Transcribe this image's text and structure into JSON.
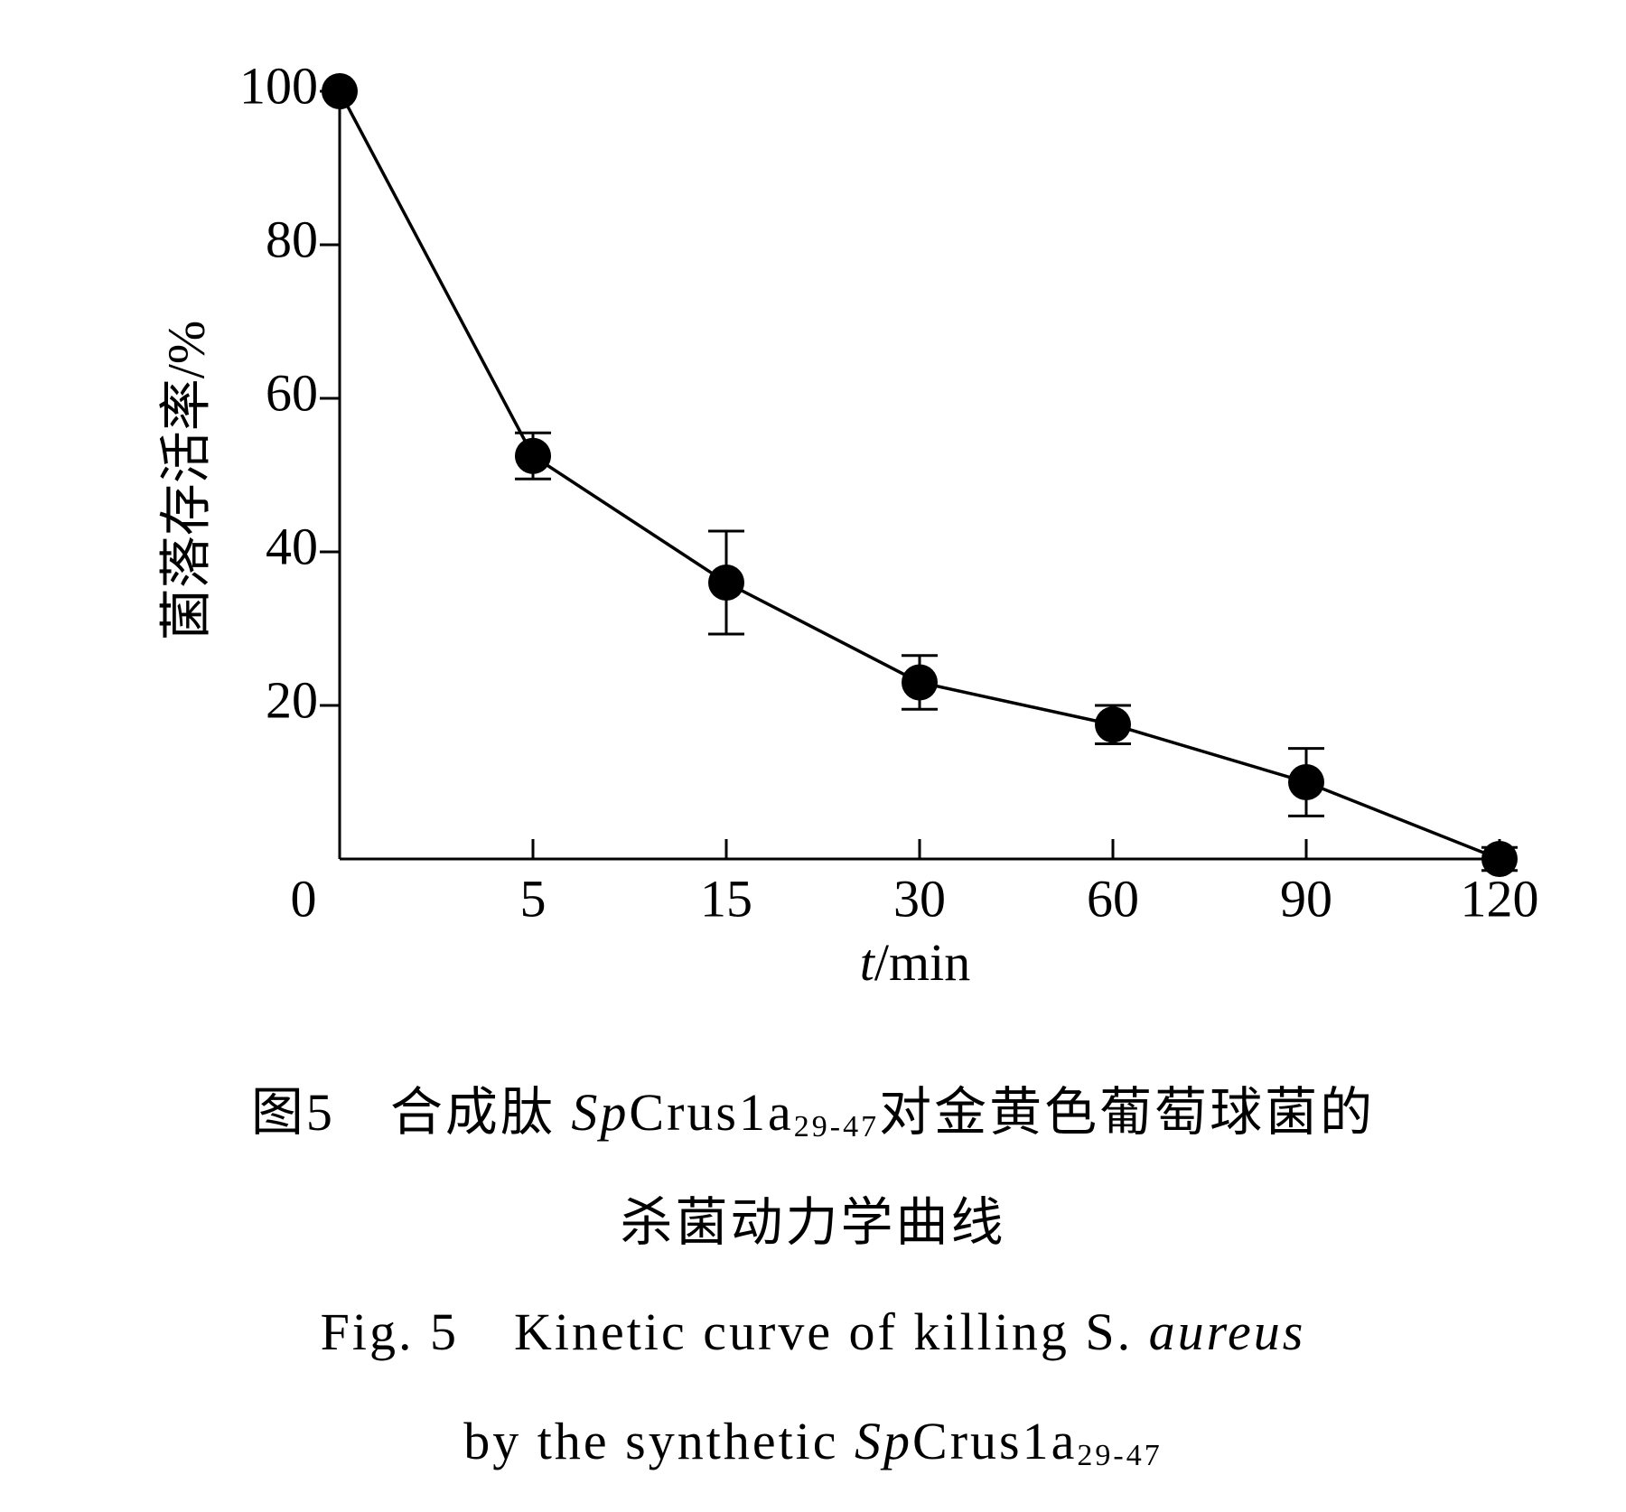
{
  "chart_data": {
    "type": "line",
    "categories": [
      "0",
      "5",
      "15",
      "30",
      "60",
      "90",
      "120"
    ],
    "values": [
      100,
      52.5,
      36,
      23,
      17.5,
      10,
      0
    ],
    "errors": [
      0,
      3,
      6.7,
      3.5,
      2.5,
      4.4,
      1.5
    ],
    "color": "#000000",
    "ylim": [
      0,
      100
    ],
    "yticks": [
      20,
      40,
      60,
      80,
      100
    ],
    "ylabel": "菌落存活率/%",
    "xlabel": [
      "t",
      "/min"
    ],
    "caption": [
      [
        "图5　合成肽 ",
        "Sp",
        "Crus1a",
        "29-47",
        "对金黄色葡萄球菌的"
      ],
      [
        "杀菌动力学曲线"
      ],
      [
        "Fig. 5　Kinetic curve of killing S. ",
        "aureus"
      ],
      [
        "by the synthetic ",
        "Sp",
        "Crus1a",
        "29-47"
      ]
    ]
  }
}
